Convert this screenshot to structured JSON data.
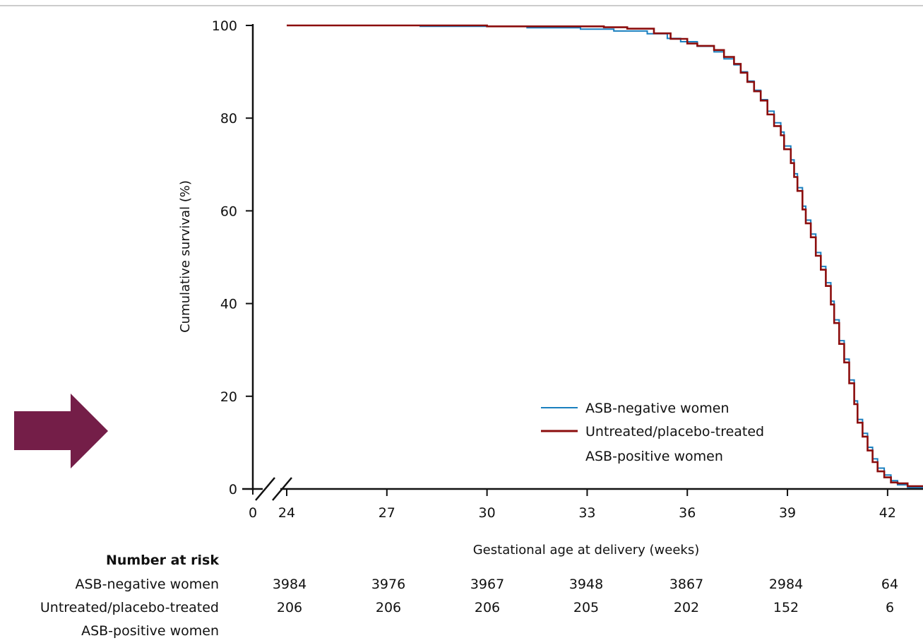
{
  "colors": {
    "arrow": "#741e48",
    "series_negative": "#1a7fbf",
    "series_positive": "#8b0d0d",
    "axis": "#111111"
  },
  "chart_data": {
    "type": "line",
    "xlabel": "Gestational age at delivery (weeks)",
    "ylabel": "Cumulative survival (%)",
    "xlim": [
      24,
      43.3
    ],
    "ylim": [
      0,
      100
    ],
    "x_axis_break": true,
    "x_origin_label": "0",
    "xticks": [
      24,
      27,
      30,
      33,
      36,
      39,
      42
    ],
    "yticks": [
      0,
      20,
      40,
      60,
      80,
      100
    ],
    "grid": false,
    "legend_position": "bottom-right",
    "series": [
      {
        "name": "ASB-negative women",
        "color_key": "series_negative",
        "x": [
          24,
          28,
          31.2,
          32.8,
          33.8,
          34.8,
          35.4,
          35.8,
          36.3,
          36.8,
          37.1,
          37.4,
          37.6,
          37.8,
          38.0,
          38.2,
          38.4,
          38.6,
          38.8,
          38.9,
          39.1,
          39.2,
          39.3,
          39.45,
          39.55,
          39.7,
          39.85,
          40.0,
          40.15,
          40.3,
          40.4,
          40.55,
          40.7,
          40.85,
          41.0,
          41.1,
          41.25,
          41.4,
          41.55,
          41.7,
          41.9,
          42.1,
          42.3,
          42.6,
          43.3
        ],
        "y": [
          100,
          99.8,
          99.5,
          99.2,
          98.8,
          98.2,
          97.2,
          96.5,
          95.5,
          94.3,
          92.8,
          91.5,
          90.0,
          88.0,
          86.0,
          84.0,
          81.5,
          79.0,
          77.0,
          74.0,
          71.0,
          68.0,
          65.0,
          61.0,
          58.0,
          55.0,
          51.0,
          48.0,
          44.5,
          40.5,
          36.5,
          32.0,
          28.0,
          23.5,
          19.0,
          15.0,
          12.0,
          9.0,
          6.5,
          4.5,
          3.0,
          1.8,
          0.9,
          0.3,
          0
        ]
      },
      {
        "name": "Untreated/placebo-treated ASB-positive women",
        "color_key": "series_positive",
        "x": [
          24,
          30,
          31.5,
          33.5,
          34.2,
          35.0,
          35.5,
          36.0,
          36.3,
          36.8,
          37.1,
          37.4,
          37.6,
          37.8,
          38.0,
          38.2,
          38.4,
          38.6,
          38.8,
          38.9,
          39.1,
          39.2,
          39.3,
          39.45,
          39.55,
          39.7,
          39.85,
          40.0,
          40.15,
          40.3,
          40.4,
          40.55,
          40.7,
          40.85,
          41.0,
          41.1,
          41.25,
          41.4,
          41.55,
          41.7,
          41.9,
          42.1,
          42.3,
          42.6,
          43.3
        ],
        "y": [
          100,
          99.8,
          99.8,
          99.6,
          99.3,
          98.3,
          97.1,
          96.1,
          95.6,
          94.7,
          93.2,
          91.7,
          89.8,
          87.8,
          85.8,
          83.8,
          80.8,
          78.3,
          76.3,
          73.3,
          70.3,
          67.3,
          64.3,
          60.3,
          57.3,
          54.3,
          50.3,
          47.3,
          43.8,
          39.8,
          35.8,
          31.3,
          27.3,
          22.8,
          18.3,
          14.3,
          11.3,
          8.3,
          5.8,
          3.8,
          2.5,
          1.4,
          1.2,
          0.6,
          0
        ]
      }
    ],
    "legend": [
      {
        "label": "ASB-negative women",
        "color_key": "series_negative"
      },
      {
        "label": "Untreated/placebo-treated",
        "label2": "ASB-positive women",
        "color_key": "series_positive"
      }
    ]
  },
  "risk_table": {
    "heading": "Number at risk",
    "rows": [
      {
        "label": "ASB-negative women",
        "values": [
          "3984",
          "3976",
          "3967",
          "3948",
          "3867",
          "2984",
          "64"
        ]
      },
      {
        "label": "Untreated/placebo-treated",
        "label2": "ASB-positive women",
        "values": [
          "206",
          "206",
          "206",
          "205",
          "202",
          "152",
          "6"
        ]
      }
    ]
  }
}
